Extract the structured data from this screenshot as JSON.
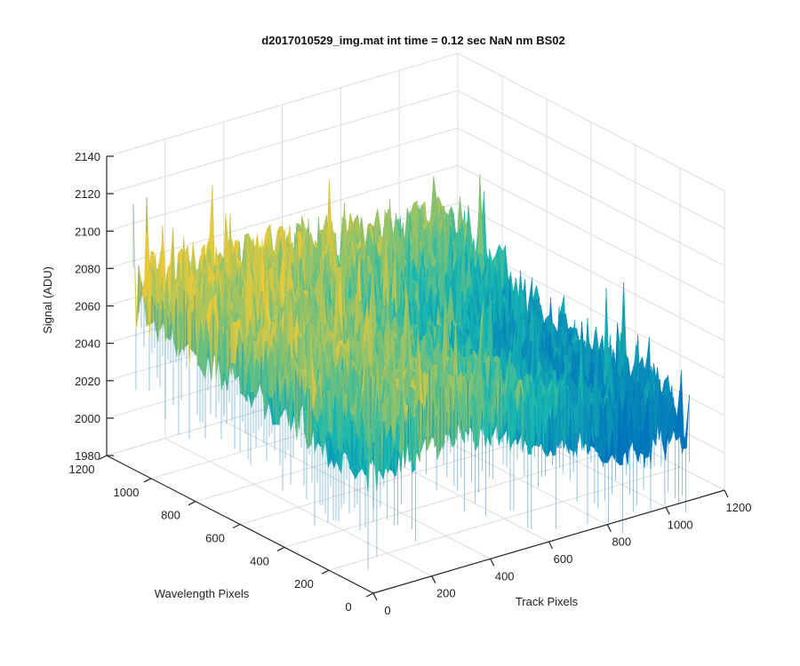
{
  "chart_data": {
    "type": "surface",
    "title": "d2017010529_img.mat int time = 0.12 sec  NaN nm BS02",
    "xlabel": "Track Pixels",
    "ylabel": "Wavelength Pixels",
    "zlabel": "Signal (ADU)",
    "xlim": [
      0,
      1200
    ],
    "ylim": [
      0,
      1200
    ],
    "zlim": [
      1980,
      2140
    ],
    "xticks": [
      "0",
      "200",
      "400",
      "600",
      "800",
      "1000",
      "1200"
    ],
    "yticks": [
      "0",
      "200",
      "400",
      "600",
      "800",
      "1000",
      "1200"
    ],
    "zticks": [
      "1980",
      "2000",
      "2020",
      "2040",
      "2060",
      "2080",
      "2100",
      "2120",
      "2140"
    ],
    "grid": true,
    "colormap": "parula",
    "surface_extent": {
      "x": [
        0,
        1080
      ],
      "y": [
        0,
        1080
      ]
    },
    "signal_range": [
      1990,
      2135
    ],
    "typical_signal": {
      "low": 2020,
      "mid": 2050,
      "high": 2080
    },
    "colors": {
      "low": "#0072BD",
      "mid": "#18B8B0",
      "high": "#E6C93A"
    }
  }
}
